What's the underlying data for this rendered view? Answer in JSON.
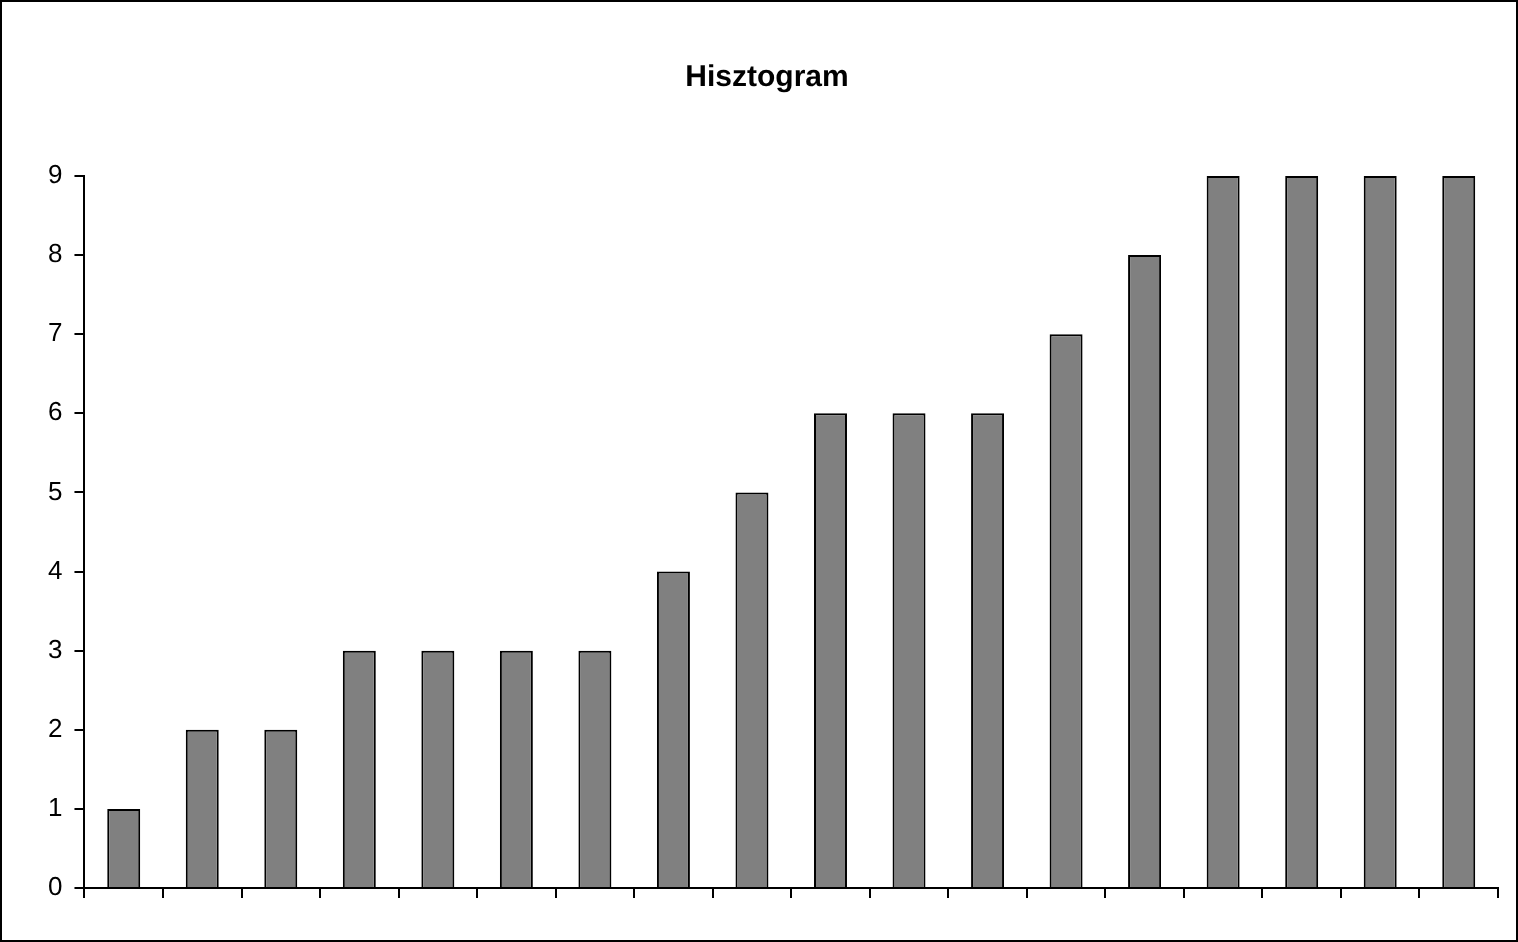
{
  "chart_data": {
    "type": "bar",
    "title": "Hisztogram",
    "categories": [
      null,
      null,
      null,
      null,
      null,
      null,
      null,
      null,
      null,
      null,
      null,
      null,
      null,
      null,
      null,
      null,
      null,
      null
    ],
    "values": [
      1,
      2,
      2,
      3,
      3,
      3,
      3,
      4,
      5,
      6,
      6,
      6,
      7,
      8,
      9,
      9,
      9,
      9
    ],
    "color": "#808080",
    "ylim": [
      0,
      9
    ],
    "yticks": [
      0,
      1,
      2,
      3,
      4,
      5,
      6,
      7,
      8,
      9
    ],
    "grid": false,
    "legend": false
  }
}
